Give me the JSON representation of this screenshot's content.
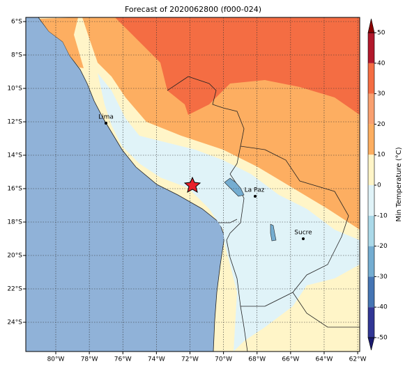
{
  "title": "Forecast of 2020062800 (f000-024)",
  "map": {
    "lon_ticks": [
      {
        "value": -80,
        "label": "80°W"
      },
      {
        "value": -78,
        "label": "78°W"
      },
      {
        "value": -76,
        "label": "76°W"
      },
      {
        "value": -74,
        "label": "74°W"
      },
      {
        "value": -72,
        "label": "72°W"
      },
      {
        "value": -70,
        "label": "70°W"
      },
      {
        "value": -68,
        "label": "68°W"
      },
      {
        "value": -66,
        "label": "66°W"
      },
      {
        "value": -64,
        "label": "64°W"
      },
      {
        "value": -62,
        "label": "62°W"
      }
    ],
    "lat_ticks": [
      {
        "value": -6,
        "label": "6°S"
      },
      {
        "value": -8,
        "label": "8°S"
      },
      {
        "value": -10,
        "label": "10°S"
      },
      {
        "value": -12,
        "label": "12°S"
      },
      {
        "value": -14,
        "label": "14°S"
      },
      {
        "value": -16,
        "label": "16°S"
      },
      {
        "value": -18,
        "label": "18°S"
      },
      {
        "value": -20,
        "label": "20°S"
      },
      {
        "value": -22,
        "label": "22°S"
      },
      {
        "value": -24,
        "label": "24°S"
      }
    ],
    "grid": true
  },
  "colorbar": {
    "label": "Min Temperature (°C)",
    "clim": [
      -50,
      50
    ],
    "ticks": [
      50,
      40,
      30,
      20,
      10,
      0,
      -10,
      -20,
      -30,
      -40,
      -50
    ],
    "colors": [
      "#313695",
      "#4575b4",
      "#74add1",
      "#abd9e9",
      "#e0f3f8",
      "#fff5c8",
      "#fdae61",
      "#f9a070",
      "#f46d43",
      "#b2182b"
    ]
  },
  "cities": [
    {
      "label": "Lima"
    },
    {
      "label": "La Paz"
    },
    {
      "label": "Sucre"
    }
  ]
}
